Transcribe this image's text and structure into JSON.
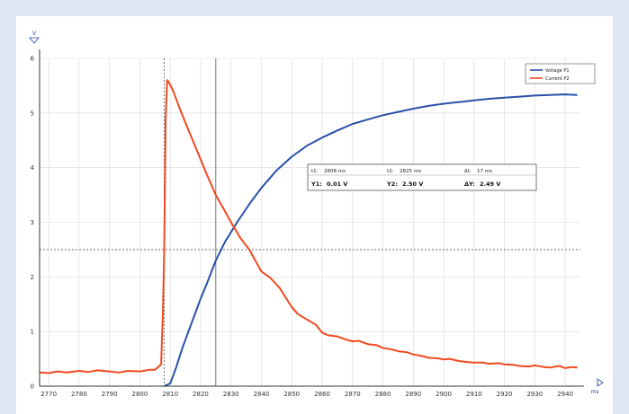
{
  "chart_data": {
    "type": "line",
    "x_unit": "ms",
    "y_unit": "V",
    "xlim": [
      2767,
      2945
    ],
    "ylim": [
      0,
      6
    ],
    "x_ticks": [
      2770,
      2780,
      2790,
      2800,
      2810,
      2820,
      2830,
      2840,
      2850,
      2860,
      2870,
      2880,
      2890,
      2900,
      2910,
      2920,
      2930,
      2940
    ],
    "y_ticks": [
      0,
      1,
      2,
      3,
      4,
      5,
      6
    ],
    "grid": true,
    "legend_position": "top-right",
    "colors": {
      "series_a": "#2a50a8",
      "series_b": "#f04a20",
      "cursor": "#555555"
    },
    "series": [
      {
        "name": "Voltage P1",
        "color": "#2a50a8",
        "points": [
          [
            2808,
            0.0
          ],
          [
            2810,
            0.05
          ],
          [
            2812,
            0.35
          ],
          [
            2814,
            0.7
          ],
          [
            2816,
            1.0
          ],
          [
            2818,
            1.3
          ],
          [
            2820,
            1.6
          ],
          [
            2822,
            1.87
          ],
          [
            2825,
            2.3
          ],
          [
            2828,
            2.64
          ],
          [
            2832,
            3.0
          ],
          [
            2836,
            3.33
          ],
          [
            2840,
            3.63
          ],
          [
            2845,
            3.95
          ],
          [
            2850,
            4.2
          ],
          [
            2855,
            4.4
          ],
          [
            2860,
            4.55
          ],
          [
            2865,
            4.68
          ],
          [
            2870,
            4.8
          ],
          [
            2875,
            4.88
          ],
          [
            2880,
            4.96
          ],
          [
            2885,
            5.02
          ],
          [
            2890,
            5.08
          ],
          [
            2895,
            5.13
          ],
          [
            2900,
            5.17
          ],
          [
            2905,
            5.2
          ],
          [
            2910,
            5.23
          ],
          [
            2915,
            5.26
          ],
          [
            2920,
            5.28
          ],
          [
            2925,
            5.3
          ],
          [
            2930,
            5.32
          ],
          [
            2935,
            5.33
          ],
          [
            2940,
            5.34
          ],
          [
            2944,
            5.33
          ]
        ]
      },
      {
        "name": "Current P2",
        "color": "#f04a20",
        "points": [
          [
            2767,
            0.25
          ],
          [
            2770,
            0.24
          ],
          [
            2773,
            0.27
          ],
          [
            2776,
            0.25
          ],
          [
            2780,
            0.28
          ],
          [
            2783,
            0.26
          ],
          [
            2786,
            0.29
          ],
          [
            2790,
            0.27
          ],
          [
            2793,
            0.25
          ],
          [
            2796,
            0.28
          ],
          [
            2800,
            0.27
          ],
          [
            2803,
            0.3
          ],
          [
            2805,
            0.3
          ],
          [
            2806,
            0.35
          ],
          [
            2807,
            0.4
          ],
          [
            2807.6,
            1.4
          ],
          [
            2808,
            2.4
          ],
          [
            2808.5,
            4.9
          ],
          [
            2809,
            5.6
          ],
          [
            2809.5,
            5.57
          ],
          [
            2811,
            5.4
          ],
          [
            2813,
            5.1
          ],
          [
            2815,
            4.82
          ],
          [
            2818,
            4.42
          ],
          [
            2820,
            4.15
          ],
          [
            2822,
            3.88
          ],
          [
            2825,
            3.5
          ],
          [
            2828,
            3.2
          ],
          [
            2830,
            3.0
          ],
          [
            2833,
            2.72
          ],
          [
            2836,
            2.5
          ],
          [
            2838,
            2.3
          ],
          [
            2840,
            2.1
          ],
          [
            2843,
            1.98
          ],
          [
            2846,
            1.8
          ],
          [
            2848,
            1.62
          ],
          [
            2850,
            1.45
          ],
          [
            2852,
            1.32
          ],
          [
            2855,
            1.22
          ],
          [
            2858,
            1.12
          ],
          [
            2860,
            0.98
          ],
          [
            2862,
            0.93
          ],
          [
            2865,
            0.91
          ],
          [
            2868,
            0.85
          ],
          [
            2870,
            0.82
          ],
          [
            2872,
            0.83
          ],
          [
            2875,
            0.77
          ],
          [
            2878,
            0.75
          ],
          [
            2880,
            0.7
          ],
          [
            2883,
            0.67
          ],
          [
            2885,
            0.64
          ],
          [
            2888,
            0.62
          ],
          [
            2890,
            0.58
          ],
          [
            2893,
            0.55
          ],
          [
            2895,
            0.52
          ],
          [
            2898,
            0.51
          ],
          [
            2900,
            0.49
          ],
          [
            2902,
            0.5
          ],
          [
            2905,
            0.46
          ],
          [
            2908,
            0.44
          ],
          [
            2910,
            0.43
          ],
          [
            2913,
            0.43
          ],
          [
            2915,
            0.41
          ],
          [
            2918,
            0.42
          ],
          [
            2920,
            0.4
          ],
          [
            2923,
            0.39
          ],
          [
            2925,
            0.37
          ],
          [
            2928,
            0.36
          ],
          [
            2930,
            0.38
          ],
          [
            2933,
            0.35
          ],
          [
            2935,
            0.34
          ],
          [
            2938,
            0.37
          ],
          [
            2940,
            0.33
          ],
          [
            2942,
            0.35
          ],
          [
            2944,
            0.34
          ]
        ]
      }
    ],
    "cursors": {
      "x1": 2808,
      "x2": 2825,
      "y_ref": 2.5
    },
    "readout": {
      "t1_label": "t1:",
      "t1_value": "2808 ms",
      "t2_label": "t2:",
      "t2_value": "2825 ms",
      "dt_label": "Δt:",
      "dt_value": "17 ms",
      "y1_label": "Y1:",
      "y1_value": "0.01 V",
      "y2_label": "Y2:",
      "y2_value": "2.50 V",
      "dy_label": "ΔY:",
      "dy_value": "2.49 V"
    }
  }
}
